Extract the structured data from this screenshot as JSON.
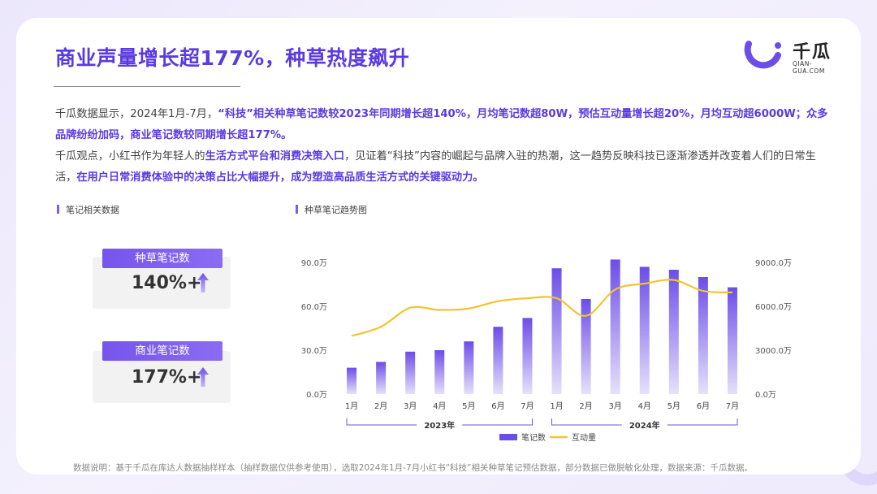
{
  "header": {
    "title": "商业声量增长超177%，种草热度飙升",
    "logo_text": "千瓜",
    "logo_sub": "QIAN-GUA.COM"
  },
  "intro": {
    "p1_a": "千瓜数据显示，2024年1月-7月，",
    "p1_b": "“科技”相关种草笔记数较2023年同期增长超140%，月均笔记数超80W，预估互动量增长超20%，月均互动超6000W；众多品牌纷纷加码，商业笔记数较同期增长超177%。",
    "p2_a": "千瓜观点，小红书作为年轻人的",
    "p2_b": "生活方式平台和消费决策入口",
    "p2_c": "，见证着“科技”内容的崛起与品牌入驻的热潮，这一趋势反映科技已逐渐渗透并改变着人们的日常生活，",
    "p2_d": "在用户日常消费体验中的决策占比大幅提升，成为塑造高品质生活方式的关键驱动力。"
  },
  "left": {
    "label": "笔记相关数据",
    "stats": [
      {
        "tag": "种草笔记数",
        "value": "140%+"
      },
      {
        "tag": "商业笔记数",
        "value": "177%+"
      }
    ]
  },
  "right": {
    "label": "种草笔记趋势图"
  },
  "chart_data": {
    "type": "bar",
    "categories": [
      "1月",
      "2月",
      "3月",
      "4月",
      "5月",
      "6月",
      "7月",
      "1月",
      "2月",
      "3月",
      "4月",
      "5月",
      "6月",
      "7月"
    ],
    "groups": [
      {
        "label": "2023年",
        "from": 0,
        "to": 6
      },
      {
        "label": "2024年",
        "from": 7,
        "to": 13
      }
    ],
    "series": [
      {
        "name": "笔记数",
        "kind": "bar",
        "axis": "left",
        "values": [
          18,
          22,
          29,
          30,
          36,
          46,
          52,
          86,
          65,
          92,
          87,
          85,
          80,
          73
        ]
      },
      {
        "name": "互动量",
        "kind": "line",
        "axis": "right",
        "values": [
          3980,
          4600,
          5900,
          5750,
          5850,
          6350,
          6550,
          6550,
          5350,
          7150,
          7550,
          7800,
          7050,
          6950
        ]
      }
    ],
    "yleft": {
      "ticks": [
        "0.0万",
        "30.0万",
        "60.0万",
        "90.0万"
      ],
      "lim": [
        0,
        90
      ]
    },
    "yright": {
      "ticks": [
        "0.0万",
        "3000.0万",
        "6000.0万",
        "9000.0万"
      ],
      "lim": [
        0,
        9000
      ]
    },
    "legend": "bottom-center",
    "colors": {
      "bar_top": "#6c4de8",
      "bar_bottom": "#e6e0fb",
      "line": "#f2c42e"
    }
  },
  "footer": {
    "note": "数据说明：基于千瓜在库达人数据抽样样本（抽样数据仅供参考使用），选取2024年1月-7月小红书“科技”相关种草笔记预估数据，部分数据已做脱敏化处理，数据来源：千瓜数据。"
  },
  "colors": {
    "accent": "#5b3ae0",
    "tag": "#7655ec"
  }
}
